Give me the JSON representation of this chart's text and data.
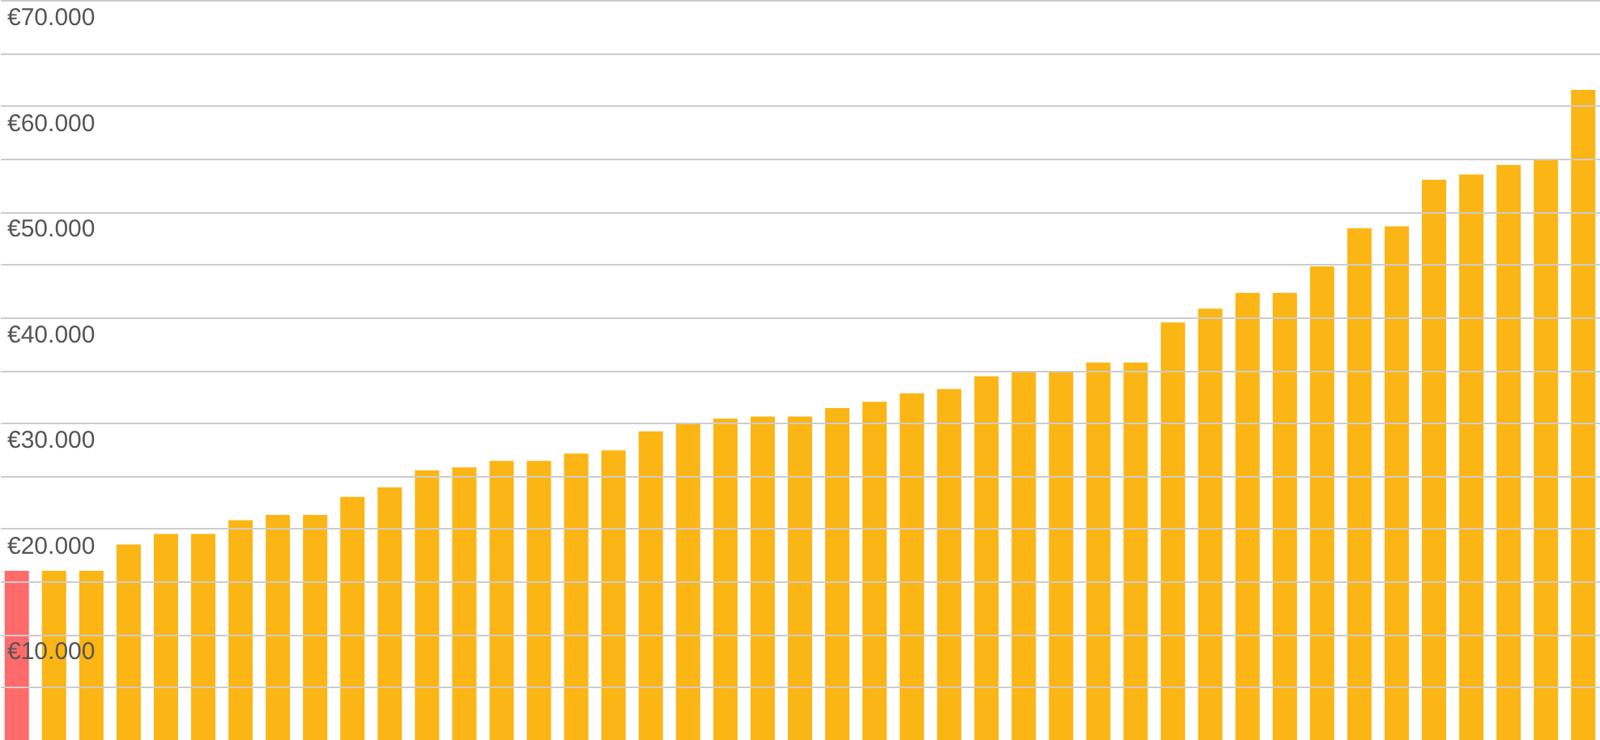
{
  "chart_data": {
    "type": "bar",
    "categories": [
      null,
      null,
      null,
      null,
      null,
      null,
      null,
      null,
      null,
      null,
      null,
      null,
      null,
      null,
      null,
      null,
      null,
      null,
      null,
      null,
      null,
      null,
      null,
      null,
      null,
      null,
      null,
      null,
      null,
      null,
      null,
      null,
      null,
      null,
      null,
      null,
      null,
      null,
      null,
      null,
      null,
      null,
      null
    ],
    "values": [
      16000,
      16000,
      16000,
      18500,
      19500,
      19500,
      20800,
      21300,
      21300,
      23000,
      23900,
      25500,
      25800,
      26400,
      26400,
      27100,
      27400,
      29200,
      30000,
      30400,
      30600,
      30600,
      31400,
      32000,
      32800,
      33200,
      34400,
      34800,
      34800,
      35700,
      35700,
      39500,
      40800,
      42300,
      42300,
      44800,
      48400,
      48600,
      53000,
      53500,
      54400,
      54900,
      61500
    ],
    "colors": [
      "#ff6b6b",
      "#fbb514",
      "#fbb514",
      "#fbb514",
      "#fbb514",
      "#fbb514",
      "#fbb514",
      "#fbb514",
      "#fbb514",
      "#fbb514",
      "#fbb514",
      "#fbb514",
      "#fbb514",
      "#fbb514",
      "#fbb514",
      "#fbb514",
      "#fbb514",
      "#fbb514",
      "#fbb514",
      "#fbb514",
      "#fbb514",
      "#fbb514",
      "#fbb514",
      "#fbb514",
      "#fbb514",
      "#fbb514",
      "#fbb514",
      "#fbb514",
      "#fbb514",
      "#fbb514",
      "#fbb514",
      "#fbb514",
      "#fbb514",
      "#fbb514",
      "#fbb514",
      "#fbb514",
      "#fbb514",
      "#fbb514",
      "#fbb514",
      "#fbb514",
      "#fbb514",
      "#fbb514",
      "#fbb514"
    ],
    "ylim": [
      0,
      70000
    ],
    "yticks": [
      {
        "value": 5000,
        "label": null
      },
      {
        "value": 10000,
        "label": "€10.000"
      },
      {
        "value": 15000,
        "label": null
      },
      {
        "value": 20000,
        "label": "€20.000"
      },
      {
        "value": 25000,
        "label": null
      },
      {
        "value": 30000,
        "label": "€30.000"
      },
      {
        "value": 35000,
        "label": null
      },
      {
        "value": 40000,
        "label": "€40.000"
      },
      {
        "value": 45000,
        "label": null
      },
      {
        "value": 50000,
        "label": "€50.000"
      },
      {
        "value": 55000,
        "label": null
      },
      {
        "value": 60000,
        "label": "€60.000"
      },
      {
        "value": 65000,
        "label": null
      },
      {
        "value": 70000,
        "label": "€70.000"
      }
    ],
    "grid": true,
    "tick_labels": "y"
  }
}
